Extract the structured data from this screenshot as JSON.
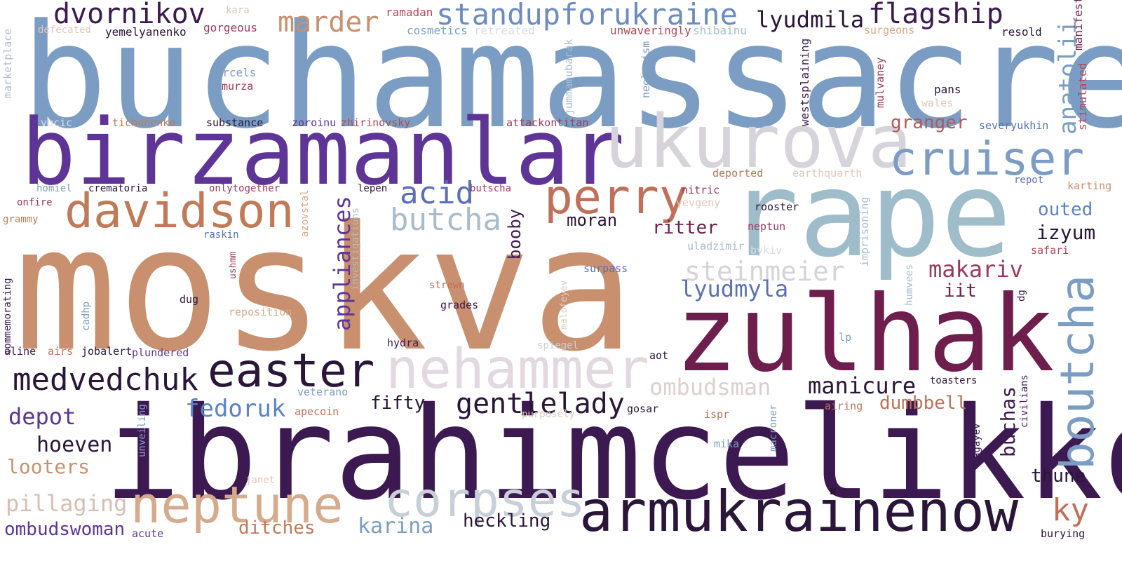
{
  "words": [
    {
      "text": "buchamassacre",
      "color": "#7b9dc4"
    },
    {
      "text": "moskva",
      "color": "#c9906f"
    },
    {
      "text": "birzamanlar",
      "color": "#5e3596"
    },
    {
      "text": "ibrahimcelikkol",
      "color": "#3c1950"
    },
    {
      "text": "rape",
      "color": "#9fbcca"
    },
    {
      "text": "zulhak",
      "color": "#6e1e4c"
    },
    {
      "text": "ukurova",
      "color": "#d6d3da"
    },
    {
      "text": "nehammer",
      "color": "#e2d8e0"
    },
    {
      "text": "armukrainenow",
      "color": "#2a1638"
    },
    {
      "text": "davidson",
      "color": "#c07a58"
    },
    {
      "text": "perry",
      "color": "#c07058"
    },
    {
      "text": "neptune",
      "color": "#d6aa8c"
    },
    {
      "text": "corpses",
      "color": "#c8cfd8"
    },
    {
      "text": "easter",
      "color": "#2a1638"
    },
    {
      "text": "cruiser",
      "color": "#7b9dc4"
    },
    {
      "text": "standupforukraine",
      "color": "#6c8cc0"
    },
    {
      "text": "dvornikov",
      "color": "#3c1950"
    },
    {
      "text": "marder",
      "color": "#c9906f"
    },
    {
      "text": "flagship",
      "color": "#3c1950"
    },
    {
      "text": "lyudmila",
      "color": "#2a1638"
    },
    {
      "text": "acid",
      "color": "#5a6fb8"
    },
    {
      "text": "butcha",
      "color": "#a8bccc"
    },
    {
      "text": "boutcha",
      "color": "#7b9dc4"
    },
    {
      "text": "medvedchuk",
      "color": "#2a1638"
    },
    {
      "text": "gentlelady",
      "color": "#2a1638"
    },
    {
      "text": "steinmeier",
      "color": "#d6d3da"
    },
    {
      "text": "lyudmyla",
      "color": "#5a6fb8"
    },
    {
      "text": "makariv",
      "color": "#9c3a5a"
    },
    {
      "text": "manicure",
      "color": "#2a1638"
    },
    {
      "text": "ombudsman",
      "color": "#dccfcf"
    },
    {
      "text": "fedoruk",
      "color": "#5a84c4"
    },
    {
      "text": "depot",
      "color": "#5e3596"
    },
    {
      "text": "hoeven",
      "color": "#2a1638"
    },
    {
      "text": "fifty",
      "color": "#2a1638"
    },
    {
      "text": "pillaging",
      "color": "#d6bfb2"
    },
    {
      "text": "looters",
      "color": "#c9906f"
    },
    {
      "text": "ombudswoman",
      "color": "#5e3596"
    },
    {
      "text": "karina",
      "color": "#7b9dc4"
    },
    {
      "text": "heckling",
      "color": "#2a1638"
    },
    {
      "text": "ditches",
      "color": "#c07a58"
    },
    {
      "text": "ky",
      "color": "#c07058"
    },
    {
      "text": "thune",
      "color": "#2a1638"
    },
    {
      "text": "dumbbell",
      "color": "#c07058"
    },
    {
      "text": "buchas",
      "color": "#3c1950"
    },
    {
      "text": "izyum",
      "color": "#2a1638"
    },
    {
      "text": "outed",
      "color": "#5a84c4"
    },
    {
      "text": "anatolii",
      "color": "#7b9dc4"
    },
    {
      "text": "granger",
      "color": "#b05a58"
    },
    {
      "text": "ritter",
      "color": "#6e1e4c"
    },
    {
      "text": "moran",
      "color": "#2a1638"
    },
    {
      "text": "appliances",
      "color": "#5e3596"
    },
    {
      "text": "booby",
      "color": "#3c1950"
    },
    {
      "text": "iit",
      "color": "#6e1e4c"
    },
    {
      "text": "kara",
      "color": "#e0c8bc"
    },
    {
      "text": "ramadan",
      "color": "#b04a58"
    },
    {
      "text": "defecated",
      "color": "#e0c8bc"
    },
    {
      "text": "yemelyanenko",
      "color": "#2a1638"
    },
    {
      "text": "gorgeous",
      "color": "#9c3a5a"
    },
    {
      "text": "cosmetics",
      "color": "#7b9dc4"
    },
    {
      "text": "retreated",
      "color": "#d8dde4"
    },
    {
      "text": "unwaveringly",
      "color": "#b04a58"
    },
    {
      "text": "shibainu",
      "color": "#a8bccc"
    },
    {
      "text": "surgeons",
      "color": "#d6aa8c"
    },
    {
      "text": "resold",
      "color": "#2a1638"
    },
    {
      "text": "manifest",
      "color": "#6e1e4c"
    },
    {
      "text": "stimulated",
      "color": "#b04a58"
    },
    {
      "text": "marketplace",
      "color": "#a8bccc"
    },
    {
      "text": "parcels",
      "color": "#7b9dc4"
    },
    {
      "text": "murza",
      "color": "#9c3a5a"
    },
    {
      "text": "jummamubarak",
      "color": "#a8bccc"
    },
    {
      "text": "neologism",
      "color": "#7b9dc4"
    },
    {
      "text": "westsplaining",
      "color": "#3c1950"
    },
    {
      "text": "mulvaney",
      "color": "#9c3a5a"
    },
    {
      "text": "pans",
      "color": "#2a1638"
    },
    {
      "text": "wales",
      "color": "#e0c8bc"
    },
    {
      "text": "vucic",
      "color": "#d8dde4"
    },
    {
      "text": "tichonenko",
      "color": "#c07a58"
    },
    {
      "text": "substance",
      "color": "#2a1638"
    },
    {
      "text": "zoroinu",
      "color": "#5e3596"
    },
    {
      "text": "zhirinovsky",
      "color": "#b04a58"
    },
    {
      "text": "attackontitan",
      "color": "#9c3a5a"
    },
    {
      "text": "severyukhin",
      "color": "#5a6fb8"
    },
    {
      "text": "homiel",
      "color": "#7b9dc4"
    },
    {
      "text": "crematoria",
      "color": "#2a1638"
    },
    {
      "text": "onlytogether",
      "color": "#9c3a5a"
    },
    {
      "text": "lepen",
      "color": "#2a1638"
    },
    {
      "text": "butscha",
      "color": "#9c3a5a"
    },
    {
      "text": "deported",
      "color": "#c07058"
    },
    {
      "text": "earthquarth",
      "color": "#e0c8bc"
    },
    {
      "text": "repot",
      "color": "#5a6fb8"
    },
    {
      "text": "karting",
      "color": "#c9906f"
    },
    {
      "text": "onfire",
      "color": "#9c3a5a"
    },
    {
      "text": "grammy",
      "color": "#c07a58"
    },
    {
      "text": "azovstal",
      "color": "#d6aa8c"
    },
    {
      "text": "investigations",
      "color": "#a8bccc"
    },
    {
      "text": "nitric",
      "color": "#9c3a5a"
    },
    {
      "text": "yevgeny",
      "color": "#e0c8bc"
    },
    {
      "text": "rooster",
      "color": "#2a1638"
    },
    {
      "text": "neptun",
      "color": "#9c3a5a"
    },
    {
      "text": "imprisoning",
      "color": "#a8bccc"
    },
    {
      "text": "raskin",
      "color": "#5a6fb8"
    },
    {
      "text": "ushmm",
      "color": "#9c3a5a"
    },
    {
      "text": "uladzimir",
      "color": "#a8bccc"
    },
    {
      "text": "bykiv",
      "color": "#d8dde4"
    },
    {
      "text": "safari",
      "color": "#b04a58"
    },
    {
      "text": "commemorating",
      "color": "#3c1950"
    },
    {
      "text": "malofeyev",
      "color": "#e0c8bc"
    },
    {
      "text": "surpass",
      "color": "#5a6fb8"
    },
    {
      "text": "humvees",
      "color": "#a8bccc"
    },
    {
      "text": "dug",
      "color": "#2a1638"
    },
    {
      "text": "strewn",
      "color": "#c07058"
    },
    {
      "text": "cadhp",
      "color": "#7b9dc4"
    },
    {
      "text": "grades",
      "color": "#3c1950"
    },
    {
      "text": "reposition",
      "color": "#d6aa8c"
    },
    {
      "text": "dg",
      "color": "#3c1950"
    },
    {
      "text": "aline",
      "color": "#3c1950"
    },
    {
      "text": "airs",
      "color": "#c07058"
    },
    {
      "text": "jobalert",
      "color": "#2a1638"
    },
    {
      "text": "plundered",
      "color": "#5e3596"
    },
    {
      "text": "hydra",
      "color": "#3c1950"
    },
    {
      "text": "spiegel",
      "color": "#c8cfd8"
    },
    {
      "text": "lp",
      "color": "#7b9dc4"
    },
    {
      "text": "aot",
      "color": "#2a1638"
    },
    {
      "text": "veterano",
      "color": "#7b9dc4"
    },
    {
      "text": "unveiling",
      "color": "#7b9dc4"
    },
    {
      "text": "apecoin",
      "color": "#c07058"
    },
    {
      "text": "purposely",
      "color": "#e0c8bc"
    },
    {
      "text": "gosar",
      "color": "#2a1638"
    },
    {
      "text": "ispr",
      "color": "#c07058"
    },
    {
      "text": "macroner",
      "color": "#7b9dc4"
    },
    {
      "text": "airing",
      "color": "#c07058"
    },
    {
      "text": "toasters",
      "color": "#2a1638"
    },
    {
      "text": "civilians",
      "color": "#3c1950"
    },
    {
      "text": "agayev",
      "color": "#3c1950"
    },
    {
      "text": "mika",
      "color": "#7b9dc4"
    },
    {
      "text": "janet",
      "color": "#e0c8bc"
    },
    {
      "text": "acute",
      "color": "#5e3596"
    },
    {
      "text": "burying",
      "color": "#2a1638"
    }
  ]
}
